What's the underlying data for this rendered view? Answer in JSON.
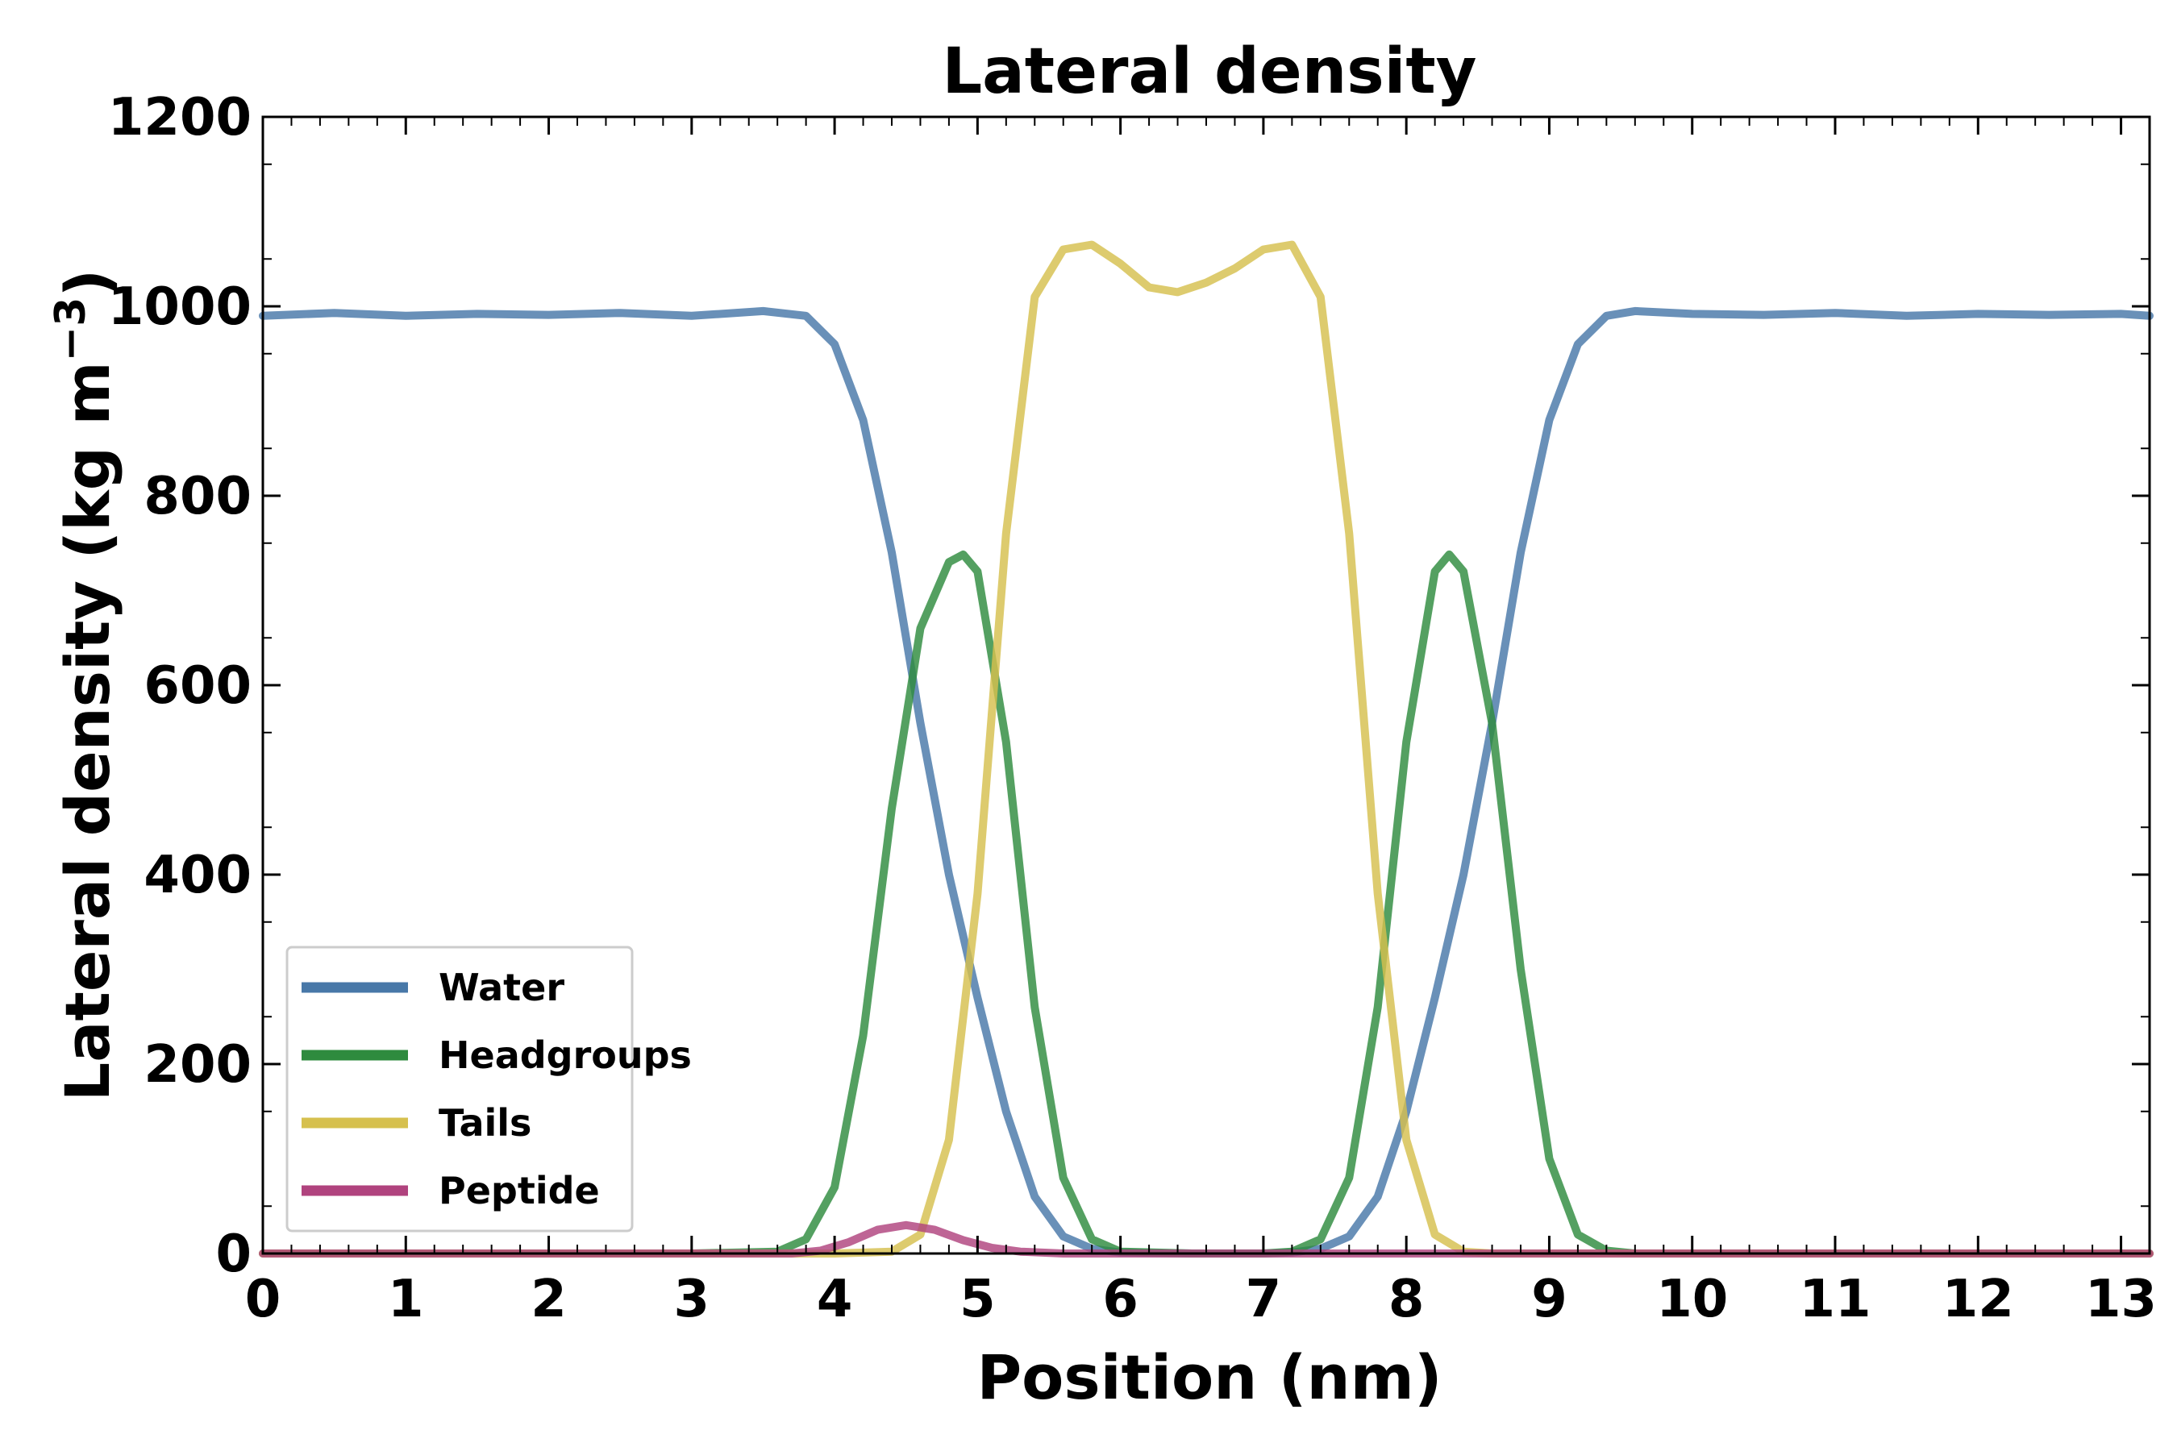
{
  "chart_data": {
    "type": "line",
    "title": "Lateral density",
    "xlabel": "Position (nm)",
    "ylabel": "Lateral density (kg m",
    "ylabel_superscript": "−3",
    "ylabel_close": ")",
    "xlim": [
      0,
      13.2
    ],
    "ylim": [
      0,
      1200
    ],
    "xticks": [
      "0",
      "1",
      "2",
      "3",
      "4",
      "5",
      "6",
      "7",
      "8",
      "9",
      "10",
      "11",
      "12",
      "13"
    ],
    "yticks": [
      "0",
      "200",
      "400",
      "600",
      "800",
      "1000",
      "1200"
    ],
    "grid": false,
    "legend_position": "lower-left",
    "series": [
      {
        "name": "Water",
        "color": "#4878a8",
        "x": [
          0,
          0.5,
          1,
          1.5,
          2,
          2.5,
          3,
          3.5,
          3.8,
          4.0,
          4.2,
          4.4,
          4.6,
          4.8,
          5.0,
          5.2,
          5.4,
          5.6,
          5.8,
          6.0,
          6.5,
          7.0,
          7.2,
          7.4,
          7.6,
          7.8,
          8.0,
          8.2,
          8.4,
          8.6,
          8.8,
          9.0,
          9.2,
          9.4,
          9.6,
          10,
          10.5,
          11,
          11.5,
          12,
          12.5,
          13,
          13.2
        ],
        "y": [
          990,
          993,
          990,
          992,
          991,
          993,
          990,
          995,
          990,
          960,
          880,
          740,
          560,
          400,
          270,
          150,
          60,
          18,
          5,
          1,
          0,
          0,
          1,
          5,
          18,
          60,
          150,
          270,
          400,
          560,
          740,
          880,
          960,
          990,
          995,
          992,
          991,
          993,
          990,
          992,
          991,
          992,
          990
        ]
      },
      {
        "name": "Headgroups",
        "color": "#2e8b3e",
        "x": [
          0,
          1,
          2,
          3,
          3.6,
          3.8,
          4.0,
          4.2,
          4.4,
          4.6,
          4.8,
          4.9,
          5.0,
          5.2,
          5.4,
          5.6,
          5.8,
          6.0,
          6.5,
          7.0,
          7.2,
          7.4,
          7.6,
          7.8,
          8.0,
          8.2,
          8.3,
          8.4,
          8.6,
          8.8,
          9.0,
          9.2,
          9.4,
          9.6,
          10,
          11,
          12,
          13,
          13.2
        ],
        "y": [
          0,
          0,
          0,
          0,
          2,
          15,
          70,
          230,
          470,
          660,
          730,
          738,
          720,
          540,
          260,
          80,
          15,
          2,
          0,
          0,
          2,
          15,
          80,
          260,
          540,
          720,
          738,
          720,
          560,
          300,
          100,
          20,
          3,
          0,
          0,
          0,
          0,
          0,
          0
        ]
      },
      {
        "name": "Tails",
        "color": "#d6c04e",
        "x": [
          0,
          1,
          2,
          3,
          4,
          4.4,
          4.6,
          4.8,
          5.0,
          5.2,
          5.4,
          5.6,
          5.8,
          6.0,
          6.2,
          6.4,
          6.6,
          6.8,
          7.0,
          7.2,
          7.4,
          7.6,
          7.8,
          8.0,
          8.2,
          8.4,
          8.6,
          8.8,
          9.0,
          10,
          11,
          12,
          13,
          13.2
        ],
        "y": [
          0,
          0,
          0,
          0,
          0,
          2,
          20,
          120,
          380,
          760,
          1010,
          1060,
          1065,
          1045,
          1020,
          1015,
          1025,
          1040,
          1060,
          1065,
          1010,
          760,
          380,
          120,
          20,
          2,
          0,
          0,
          0,
          0,
          0,
          0,
          0,
          0
        ]
      },
      {
        "name": "Peptide",
        "color": "#b0437e",
        "x": [
          0,
          1,
          2,
          3,
          3.7,
          3.9,
          4.1,
          4.3,
          4.5,
          4.7,
          4.9,
          5.1,
          5.3,
          5.6,
          6.0,
          7,
          8,
          9,
          10,
          11,
          12,
          13,
          13.2
        ],
        "y": [
          0,
          0,
          0,
          0,
          0,
          3,
          12,
          25,
          30,
          25,
          14,
          6,
          2,
          0,
          0,
          0,
          0,
          0,
          0,
          0,
          0,
          0,
          0
        ]
      }
    ]
  }
}
